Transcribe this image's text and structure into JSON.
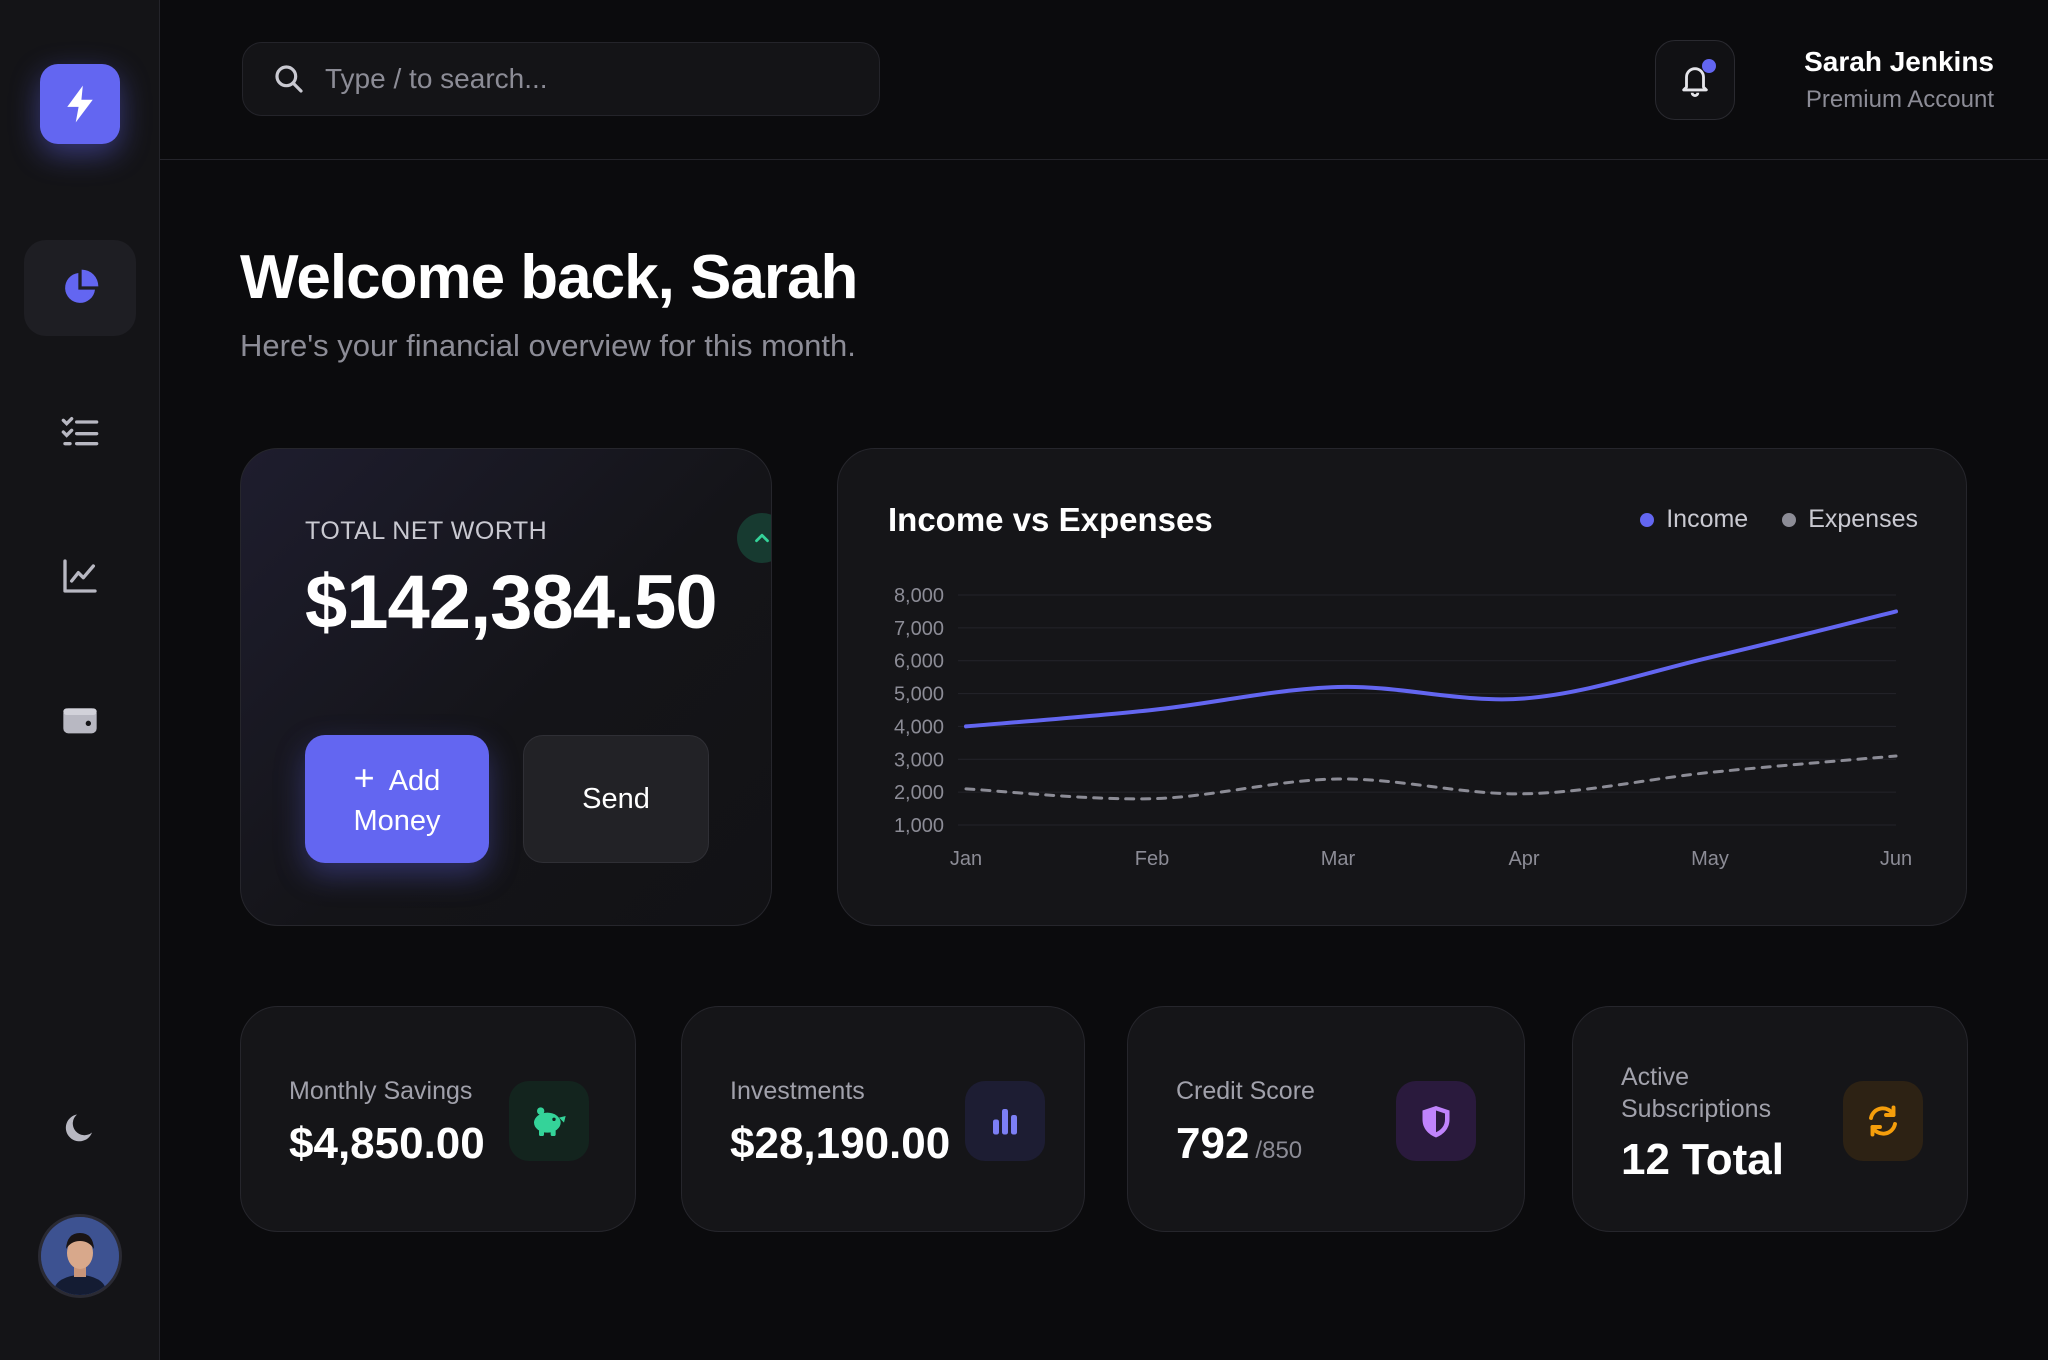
{
  "header": {
    "search_placeholder": "Type / to search...",
    "user_name": "Sarah Jenkins",
    "user_plan": "Premium Account"
  },
  "sidebar": {
    "logo_icon": "bolt-icon",
    "items": [
      {
        "icon": "pie-chart-icon",
        "active": true
      },
      {
        "icon": "checklist-icon",
        "active": false
      },
      {
        "icon": "line-chart-icon",
        "active": false
      },
      {
        "icon": "wallet-icon",
        "active": false
      }
    ],
    "theme_icon": "moon-icon"
  },
  "welcome": {
    "title": "Welcome back, Sarah",
    "subtitle": "Here's your financial overview for this month."
  },
  "net_worth": {
    "label": "TOTAL NET WORTH",
    "value": "$142,384.50",
    "add_plus": "+",
    "add_label_1": "Add",
    "add_label_2": "Money",
    "send_label": "Send"
  },
  "income_chart": {
    "title": "Income vs Expenses",
    "legend_income": "Income",
    "legend_expenses": "Expenses"
  },
  "chart_data": {
    "type": "line",
    "title": "Income vs Expenses",
    "categories": [
      "Jan",
      "Feb",
      "Mar",
      "Apr",
      "May",
      "Jun"
    ],
    "series": [
      {
        "name": "Income",
        "values": [
          4000,
          4500,
          5200,
          4850,
          6100,
          7500
        ],
        "color": "#6366f1",
        "style": "solid"
      },
      {
        "name": "Expenses",
        "values": [
          2100,
          1800,
          2400,
          1950,
          2600,
          3100
        ],
        "color": "#8c8c96",
        "style": "dashed"
      }
    ],
    "yticks": [
      "8,000",
      "7,000",
      "6,000",
      "5,000",
      "4,000",
      "3,000",
      "2,000",
      "1,000"
    ],
    "ylim": [
      1000,
      8000
    ],
    "grid": true,
    "legend_position": "top-right"
  },
  "stats": [
    {
      "label": "Monthly Savings",
      "value": "$4,850.00",
      "suffix": "",
      "icon": "piggy-bank-icon",
      "color": "#34d399"
    },
    {
      "label": "Investments",
      "value": "$28,190.00",
      "suffix": "",
      "icon": "bar-chart-icon",
      "color": "#6366f1"
    },
    {
      "label": "Credit Score",
      "value": "792",
      "suffix": "/850",
      "icon": "shield-icon",
      "color": "#a855f7"
    },
    {
      "label_1": "Active",
      "label_2": "Subscriptions",
      "value": "12 Total",
      "suffix": "",
      "icon": "refresh-icon",
      "color": "#f59e0b"
    }
  ],
  "colors": {
    "accent": "#6366f1",
    "background": "#0b0b0d",
    "card": "#151518",
    "success": "#34d399"
  }
}
